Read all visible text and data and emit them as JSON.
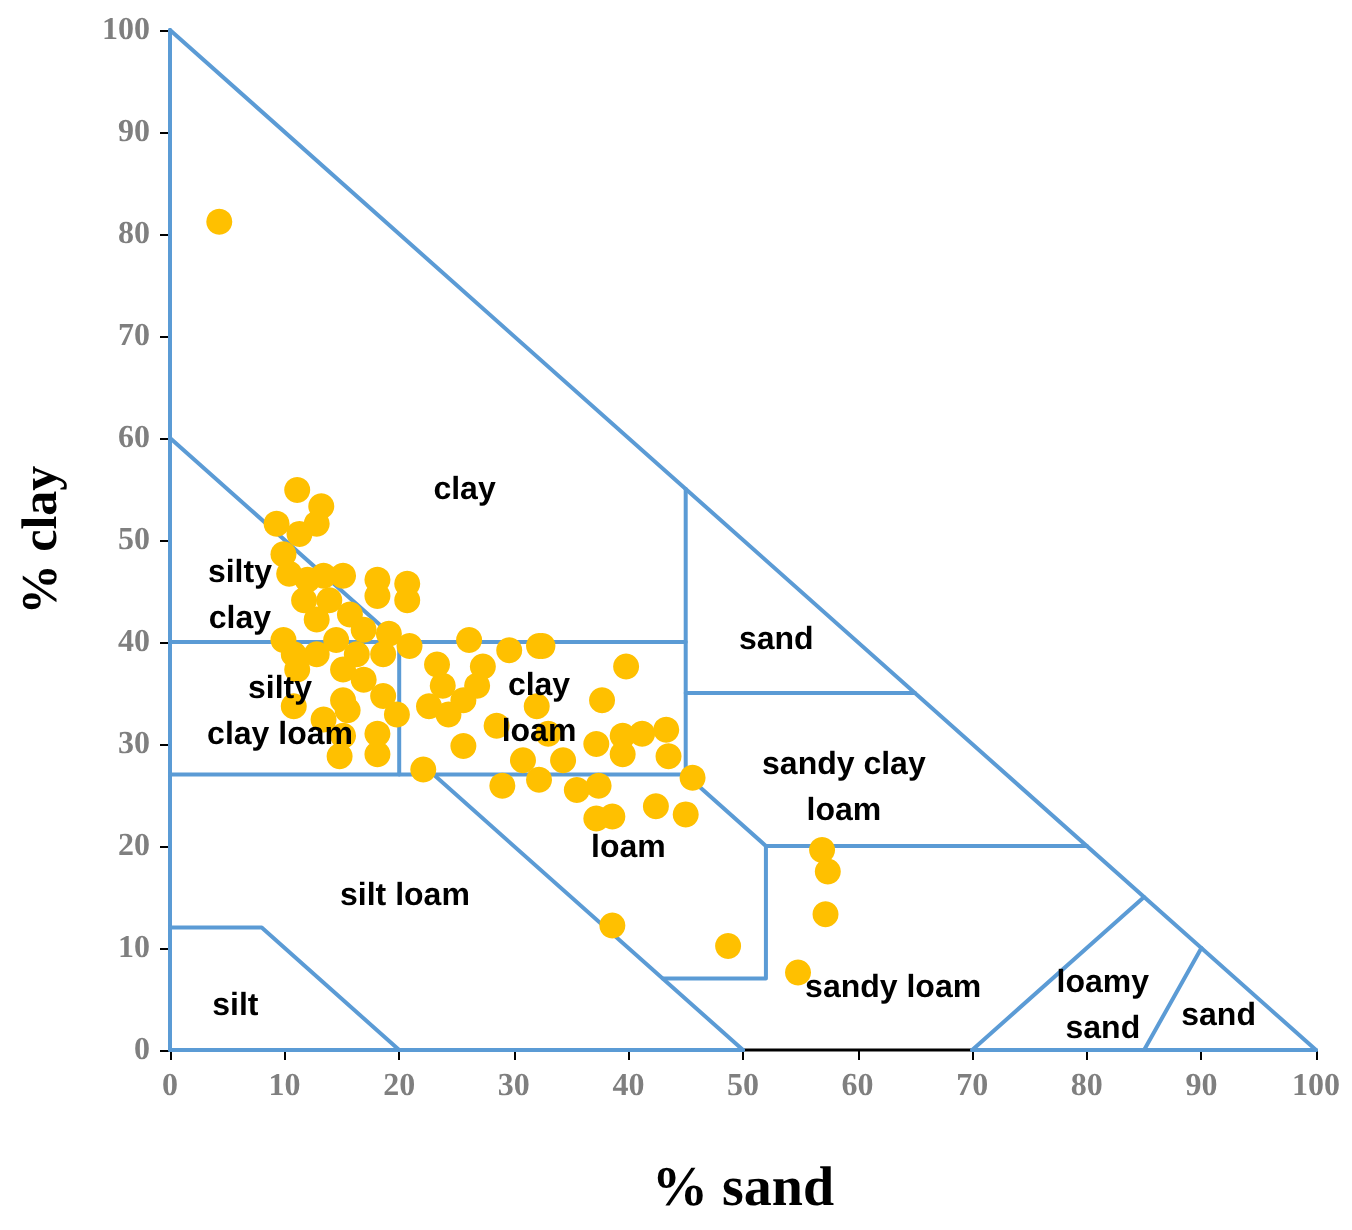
{
  "chart_data": {
    "type": "scatter",
    "xlabel": "% sand",
    "ylabel": "% clay",
    "xlim": [
      0,
      100
    ],
    "xticks": [
      0,
      10,
      20,
      30,
      40,
      50,
      60,
      70,
      80,
      90,
      100
    ],
    "ylim": [
      0,
      100
    ],
    "yticks": [
      0,
      10,
      20,
      30,
      40,
      50,
      60,
      70,
      80,
      90,
      100
    ],
    "grid": false,
    "marker": "circle",
    "series": [
      {
        "type": "line",
        "marker": "none",
        "line_style": "solid",
        "color": "#5b9bd5",
        "x": [
          0,
          0
        ],
        "values": [
          0,
          100
        ]
      },
      {
        "type": "line",
        "marker": "none",
        "line_style": "solid",
        "color": "#5b9bd5",
        "x": [
          0,
          100
        ],
        "values": [
          100,
          0
        ]
      },
      {
        "type": "line",
        "marker": "none",
        "line_style": "solid",
        "color": "#5b9bd5",
        "x": [
          0,
          50
        ],
        "values": [
          0,
          0
        ]
      },
      {
        "type": "line",
        "marker": "none",
        "line_style": "solid",
        "color": "#5b9bd5",
        "x": [
          70,
          100
        ],
        "values": [
          0,
          0
        ]
      },
      {
        "type": "line",
        "marker": "none",
        "line_style": "solid",
        "color": "#5b9bd5",
        "x": [
          0,
          20
        ],
        "values": [
          60,
          40
        ]
      },
      {
        "type": "line",
        "marker": "none",
        "line_style": "solid",
        "color": "#5b9bd5",
        "x": [
          0,
          45
        ],
        "values": [
          40,
          40
        ]
      },
      {
        "type": "line",
        "marker": "none",
        "line_style": "solid",
        "color": "#5b9bd5",
        "x": [
          45,
          45
        ],
        "values": [
          55,
          27
        ]
      },
      {
        "type": "line",
        "marker": "none",
        "line_style": "solid",
        "color": "#5b9bd5",
        "x": [
          45,
          65
        ],
        "values": [
          35,
          35
        ]
      },
      {
        "type": "line",
        "marker": "none",
        "line_style": "solid",
        "color": "#5b9bd5",
        "x": [
          20,
          20
        ],
        "values": [
          40,
          27
        ]
      },
      {
        "type": "line",
        "marker": "none",
        "line_style": "solid",
        "color": "#5b9bd5",
        "x": [
          0,
          45,
          52,
          80
        ],
        "values": [
          27,
          27,
          20,
          20
        ]
      },
      {
        "type": "line",
        "marker": "none",
        "line_style": "solid",
        "color": "#5b9bd5",
        "x": [
          52,
          52,
          43
        ],
        "values": [
          20,
          7,
          7
        ]
      },
      {
        "type": "line",
        "marker": "none",
        "line_style": "solid",
        "color": "#5b9bd5",
        "x": [
          23,
          50
        ],
        "values": [
          27,
          0
        ]
      },
      {
        "type": "line",
        "marker": "none",
        "line_style": "solid",
        "color": "#5b9bd5",
        "x": [
          0,
          8,
          20
        ],
        "values": [
          12,
          12,
          0
        ]
      },
      {
        "type": "line",
        "marker": "none",
        "line_style": "solid",
        "color": "#5b9bd5",
        "x": [
          70,
          85
        ],
        "values": [
          0,
          15
        ]
      },
      {
        "type": "line",
        "marker": "none",
        "line_style": "solid",
        "color": "#5b9bd5",
        "x": [
          85,
          90
        ],
        "values": [
          0,
          10
        ]
      },
      {
        "color": "#ffc000",
        "x": [
          4.3,
          11.1,
          13.2,
          12.8,
          9.3,
          11.3,
          9.9,
          10.4,
          12,
          13.4,
          15.1,
          18.1,
          20.7,
          20.7,
          18.1,
          13.9,
          11.7,
          15.7,
          12.8,
          16.9,
          19.1,
          9.9,
          14.5,
          10.8,
          12.8,
          16.3,
          18.6,
          20.9,
          26.1,
          29.6,
          32.2,
          23.3,
          27.3,
          15.1,
          16.9,
          11.1,
          23.8,
          26.8,
          15.1,
          18.6,
          10.8,
          15.5,
          19.8,
          24.3,
          13.4,
          18.1,
          15.1,
          14.8,
          18.1,
          22.1,
          29,
          32.5,
          39.8,
          37.7,
          22.6,
          25.6,
          28.5,
          32,
          33,
          25.6,
          30.8,
          34.3,
          37.2,
          39.5,
          41.2,
          43.3,
          43.5,
          39.5,
          32.2,
          35.5,
          37.4,
          45.6,
          42.4,
          45,
          37.2,
          38.6,
          38.6,
          48.7,
          56.9,
          57.4,
          57.2,
          54.8
        ],
        "values": [
          81.2,
          54.9,
          53.3,
          51.6,
          51.6,
          50.6,
          48.6,
          46.7,
          46.1,
          46.5,
          46.5,
          46.1,
          45.7,
          44.1,
          44.5,
          44.1,
          44.1,
          42.7,
          42.2,
          41.2,
          40.8,
          40.2,
          40.2,
          38.8,
          38.8,
          38.8,
          38.8,
          39.6,
          40.2,
          39.2,
          39.6,
          37.8,
          37.6,
          37.3,
          36.3,
          37.3,
          35.7,
          35.7,
          34.3,
          34.7,
          33.7,
          33.3,
          32.9,
          32.9,
          32.4,
          31,
          30.8,
          28.8,
          29,
          27.5,
          25.9,
          39.6,
          37.6,
          34.3,
          33.7,
          34.3,
          31.8,
          33.7,
          31,
          29.8,
          28.4,
          28.4,
          30,
          30.8,
          31,
          31.4,
          28.8,
          29,
          26.5,
          25.5,
          25.9,
          26.7,
          23.9,
          23.1,
          22.7,
          22.9,
          12.2,
          10.2,
          19.6,
          17.5,
          13.3,
          7.6
        ]
      }
    ],
    "annotations": [
      "clay",
      "silty\nclay",
      "silty\nclay loam",
      "clay\nloam",
      "sand",
      "sandy clay\nloam",
      "loam",
      "silt loam",
      "silt",
      "sandy loam",
      "loamy\nsand",
      "sand"
    ]
  }
}
